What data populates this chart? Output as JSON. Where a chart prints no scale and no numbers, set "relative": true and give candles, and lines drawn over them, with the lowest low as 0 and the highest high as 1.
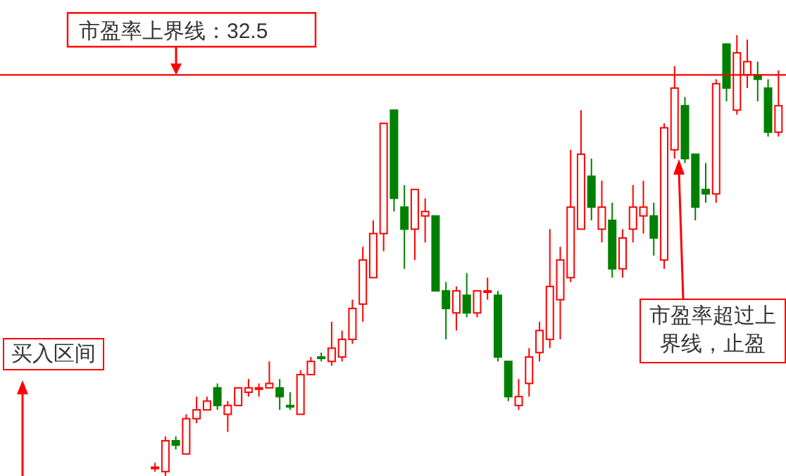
{
  "chart_data": {
    "type": "candlestick",
    "relative": true,
    "categories": [
      null,
      null,
      null,
      null,
      null,
      null,
      null,
      null,
      null,
      null,
      null,
      null,
      null,
      null,
      null,
      null,
      null,
      null,
      null,
      null,
      null,
      null,
      null,
      null,
      null,
      null,
      null,
      null,
      null,
      null,
      null,
      null,
      null,
      null,
      null,
      null,
      null,
      null,
      null,
      null,
      null,
      null,
      null,
      null,
      null,
      null,
      null,
      null,
      null,
      null,
      null,
      null,
      null,
      null,
      null,
      null,
      null,
      null,
      null,
      null,
      null
    ],
    "ohlc": [
      [
        0.02,
        0.03,
        0.01,
        0.02
      ],
      [
        0.01,
        0.09,
        0,
        0.08
      ],
      [
        0.08,
        0.09,
        0.06,
        0.07
      ],
      [
        0.05,
        0.14,
        0.05,
        0.13
      ],
      [
        0.13,
        0.18,
        0.12,
        0.15
      ],
      [
        0.15,
        0.18,
        0.15,
        0.17
      ],
      [
        0.2,
        0.21,
        0.15,
        0.16
      ],
      [
        0.14,
        0.17,
        0.1,
        0.16
      ],
      [
        0.16,
        0.2,
        0.16,
        0.2
      ],
      [
        0.19,
        0.22,
        0.18,
        0.2
      ],
      [
        0.2,
        0.21,
        0.18,
        0.2
      ],
      [
        0.2,
        0.26,
        0.2,
        0.21
      ],
      [
        0.2,
        0.22,
        0.15,
        0.18
      ],
      [
        0.16,
        0.19,
        0.15,
        0.16
      ],
      [
        0.14,
        0.24,
        0.14,
        0.23
      ],
      [
        0.23,
        0.27,
        0.23,
        0.26
      ],
      [
        0.27,
        0.28,
        0.26,
        0.27
      ],
      [
        0.26,
        0.35,
        0.25,
        0.29
      ],
      [
        0.27,
        0.33,
        0.26,
        0.31
      ],
      [
        0.31,
        0.4,
        0.3,
        0.38
      ],
      [
        0.39,
        0.52,
        0.35,
        0.49
      ],
      [
        0.45,
        0.58,
        0.45,
        0.55
      ],
      [
        0.55,
        0.8,
        0.51,
        0.8
      ],
      [
        0.83,
        0.83,
        0.6,
        0.63
      ],
      [
        0.61,
        0.66,
        0.47,
        0.56
      ],
      [
        0.56,
        0.65,
        0.49,
        0.65
      ],
      [
        0.59,
        0.63,
        0.53,
        0.6
      ],
      [
        0.59,
        0.59,
        0.42,
        0.42
      ],
      [
        0.42,
        0.44,
        0.31,
        0.38
      ],
      [
        0.37,
        0.43,
        0.33,
        0.42
      ],
      [
        0.41,
        0.46,
        0.36,
        0.37
      ],
      [
        0.37,
        0.42,
        0.36,
        0.42
      ],
      [
        0.42,
        0.45,
        0.4,
        0.42
      ],
      [
        0.41,
        0.42,
        0.26,
        0.27
      ],
      [
        0.26,
        0.26,
        0.17,
        0.18
      ],
      [
        0.16,
        0.22,
        0.15,
        0.18
      ],
      [
        0.21,
        0.29,
        0.18,
        0.27
      ],
      [
        0.28,
        0.35,
        0.26,
        0.33
      ],
      [
        0.31,
        0.56,
        0.29,
        0.43
      ],
      [
        0.4,
        0.52,
        0.31,
        0.49
      ],
      [
        0.45,
        0.74,
        0.44,
        0.61
      ],
      [
        0.56,
        0.83,
        0.56,
        0.73
      ],
      [
        0.68,
        0.72,
        0.58,
        0.61
      ],
      [
        0.56,
        0.67,
        0.53,
        0.61
      ],
      [
        0.58,
        0.62,
        0.45,
        0.47
      ],
      [
        0.47,
        0.56,
        0.45,
        0.54
      ],
      [
        0.56,
        0.66,
        0.53,
        0.61
      ],
      [
        0.59,
        0.67,
        0.55,
        0.61
      ],
      [
        0.59,
        0.62,
        0.5,
        0.54
      ],
      [
        0.49,
        0.8,
        0.47,
        0.79
      ],
      [
        0.74,
        0.93,
        0.72,
        0.88
      ],
      [
        0.84,
        0.86,
        0.71,
        0.72
      ],
      [
        0.73,
        0.73,
        0.58,
        0.61
      ],
      [
        0.65,
        0.71,
        0.62,
        0.64
      ],
      [
        0.64,
        0.9,
        0.62,
        0.89
      ],
      [
        0.98,
        0.98,
        0.85,
        0.88
      ],
      [
        0.83,
        1,
        0.82,
        0.96
      ],
      [
        0.91,
        0.99,
        0.88,
        0.94
      ],
      [
        0.91,
        0.94,
        0.85,
        0.9
      ],
      [
        0.88,
        0.9,
        0.77,
        0.78
      ],
      [
        0.78,
        0.92,
        0.77,
        0.84
      ]
    ],
    "colors": [
      "#ff0000",
      "#ff0000",
      "#008000",
      "#ff0000",
      "#ff0000",
      "#ff0000",
      "#008000",
      "#ff0000",
      "#ff0000",
      "#ff0000",
      "#ff0000",
      "#ff0000",
      "#008000",
      "#008000",
      "#ff0000",
      "#ff0000",
      "#008000",
      "#ff0000",
      "#ff0000",
      "#ff0000",
      "#ff0000",
      "#ff0000",
      "#ff0000",
      "#008000",
      "#008000",
      "#ff0000",
      "#ff0000",
      "#008000",
      "#008000",
      "#ff0000",
      "#008000",
      "#ff0000",
      "#ff0000",
      "#008000",
      "#008000",
      "#ff0000",
      "#ff0000",
      "#ff0000",
      "#ff0000",
      "#ff0000",
      "#ff0000",
      "#ff0000",
      "#008000",
      "#ff0000",
      "#008000",
      "#ff0000",
      "#ff0000",
      "#ff0000",
      "#008000",
      "#ff0000",
      "#ff0000",
      "#008000",
      "#008000",
      "#008000",
      "#ff0000",
      "#008000",
      "#ff0000",
      "#ff0000",
      "#008000",
      "#008000",
      "#ff0000"
    ],
    "ref_lines": [
      {
        "axis": "y",
        "value": 0.91,
        "label": "市盈率上界线：32.5",
        "color": "#ff0000"
      }
    ],
    "annotations": [
      "买入区间",
      "市盈率超过上界线，止盈"
    ]
  }
}
